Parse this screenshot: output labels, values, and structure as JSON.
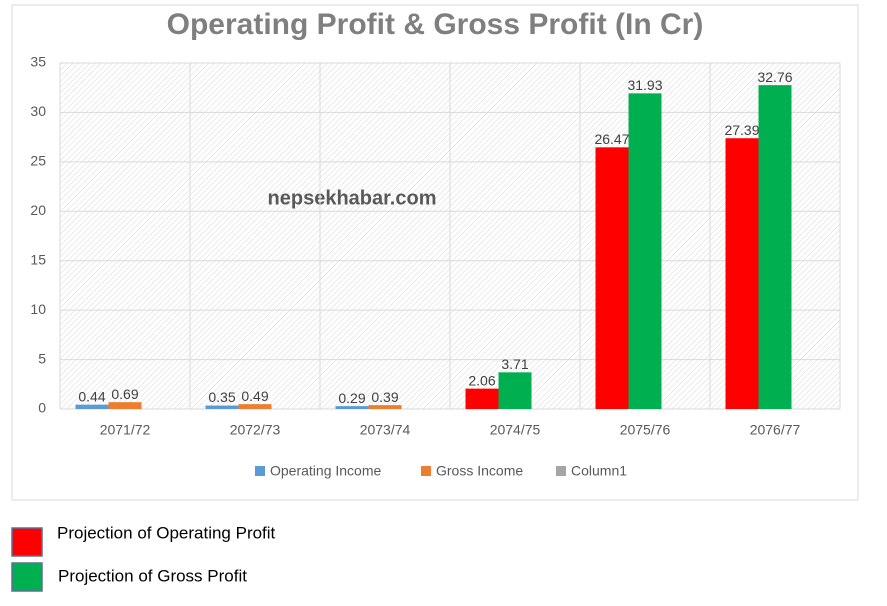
{
  "chart_data": {
    "type": "bar",
    "title": "Operating Profit & Gross Profit (In Cr)",
    "watermark": "nepsekhabar.com",
    "categories": [
      "2071/72",
      "2072/73",
      "2073/74",
      "2074/75",
      "2075/76",
      "2076/77"
    ],
    "series": [
      {
        "name": "Operating Income",
        "color": "#5b9bd5",
        "values": [
          0.44,
          0.35,
          0.29,
          2.06,
          26.47,
          27.39
        ],
        "colors": [
          "#5b9bd5",
          "#5b9bd5",
          "#5b9bd5",
          "#ff0000",
          "#ff0000",
          "#ff0000"
        ]
      },
      {
        "name": "Gross Income",
        "color": "#ed7d31",
        "values": [
          0.69,
          0.49,
          0.39,
          3.71,
          31.93,
          32.76
        ],
        "colors": [
          "#ed7d31",
          "#ed7d31",
          "#ed7d31",
          "#00b050",
          "#00b050",
          "#00b050"
        ]
      },
      {
        "name": "Column1",
        "color": "#a5a5a5",
        "values": [
          null,
          null,
          null,
          null,
          null,
          null
        ]
      }
    ],
    "ylim": [
      0,
      35
    ],
    "yticks": [
      0,
      5,
      10,
      15,
      20,
      25,
      30,
      35
    ],
    "grid": true,
    "legend": "bottom",
    "projection_legend": [
      {
        "label": "Projection of Operating Profit",
        "color": "#ff0000"
      },
      {
        "label": "Projection of Gross Profit",
        "color": "#00b050"
      }
    ]
  }
}
